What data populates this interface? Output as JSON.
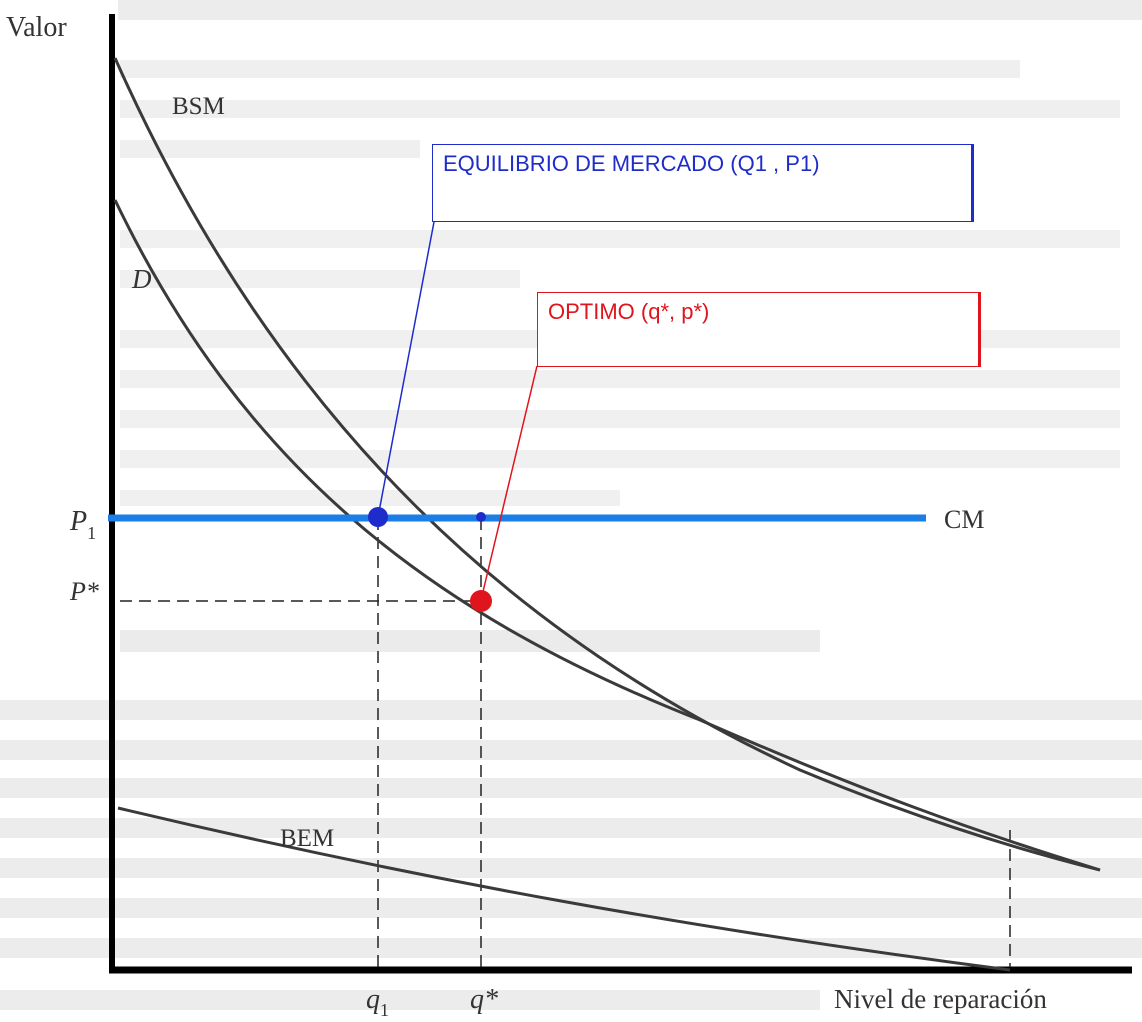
{
  "colors": {
    "axis": "#000000",
    "curve": "#3a3a3a",
    "cm_line": "#1a7ee6",
    "equilibrium": "#1f2ccc",
    "optimum": "#e0141c",
    "background_text": "#d4d4d4"
  },
  "axes": {
    "y_label": "Valor",
    "x_label": "Nivel de reparación"
  },
  "curves": {
    "bsm": "BSM",
    "d": "D",
    "bem": "BEM",
    "cm": "CM"
  },
  "ticks": {
    "p1": "P",
    "p1_sub": "1",
    "p_star": "P*",
    "q1": "q",
    "q1_sub": "1",
    "q_star": "q*"
  },
  "annotations": {
    "equilibrio": "EQUILIBRIO DE MERCADO (Q1 , P1)",
    "optimo": "OPTIMO (q*, p*)"
  }
}
